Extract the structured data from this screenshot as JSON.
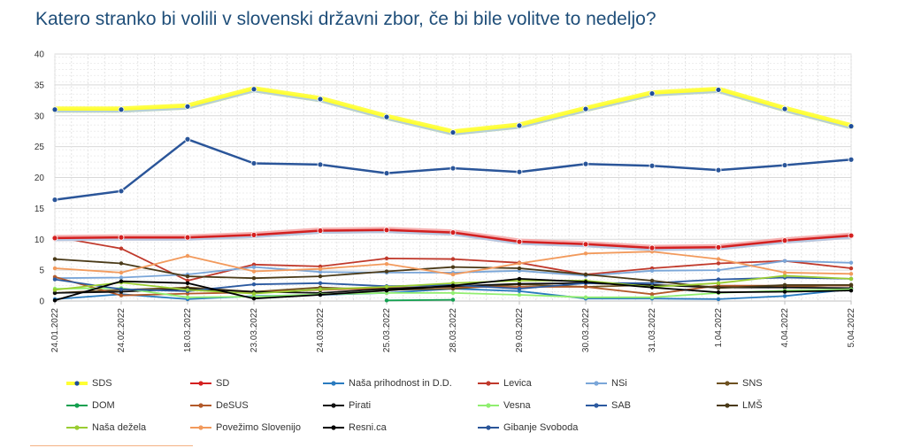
{
  "title": "Katero stranko bi volili v slovenski državni zbor, če bi bile volitve to nedeljo?",
  "colors": {
    "SDS": "#1f4e9a",
    "SDS_glow": "#ffff33",
    "SD": "#d42020",
    "Nasa_prihodnost": "#2a7bbf",
    "Levica": "#c0392b",
    "NSi": "#7aa6d8",
    "SNS": "#6e5120",
    "DOM": "#13a050",
    "DeSUS": "#b35a2a",
    "Pirati": "#111111",
    "Vesna": "#90ee70",
    "SAB": "#2c5aa0",
    "LMS": "#4a3a18",
    "Nasa_dezela": "#9acd32",
    "Povezimo": "#f29a5c",
    "Resnica": "#000000",
    "Gibanje": "#2a5599"
  },
  "chart_data": {
    "type": "line",
    "title": "Katero stranko bi volili v slovenski državni zbor, če bi bile volitve to nedeljo?",
    "xlabel": "",
    "ylabel": "",
    "ylim": [
      0,
      40
    ],
    "yticks": [
      "0",
      "5",
      "10",
      "15",
      "20",
      "25",
      "30",
      "35",
      "40"
    ],
    "grid": true,
    "legend_position": "bottom",
    "x": [
      "24.01.2022",
      "24.02.2022",
      "18.03.2022",
      "23.03.2022",
      "24.03.2022",
      "25.03.2022",
      "28.03.2022",
      "29.03.2022",
      "30.03.2022",
      "31.03.2022",
      "1.04.2022",
      "4.04.2022",
      "5.04.2022"
    ],
    "series": [
      {
        "name": "SDS",
        "color": "#1f4e9a",
        "glow": "#ffff33",
        "values": [
          31,
          31,
          31.5,
          34.3,
          32.7,
          29.8,
          27.3,
          28.4,
          31.1,
          33.6,
          34.2,
          31.1,
          28.3
        ]
      },
      {
        "name": "SD",
        "color": "#d42020",
        "glow": "#f4a9a9",
        "values": [
          10.2,
          10.3,
          10.3,
          10.7,
          11.4,
          11.5,
          11.1,
          9.6,
          9.2,
          8.6,
          8.7,
          9.8,
          10.6
        ]
      },
      {
        "name": "Naša prihodnost in D.D.",
        "color": "#2a7bbf",
        "values": [
          0.3,
          1.1,
          0.3,
          0.8,
          1.0,
          1.3,
          2.0,
          1.6,
          0.4,
          0.4,
          0.3,
          0.8,
          1.9
        ]
      },
      {
        "name": "Levica",
        "color": "#c0392b",
        "values": [
          10.4,
          8.5,
          3.3,
          5.9,
          5.6,
          6.9,
          6.8,
          6.2,
          4.3,
          5.3,
          6.1,
          6.5,
          5.3
        ]
      },
      {
        "name": "NSi",
        "color": "#7aa6d8",
        "values": [
          3.7,
          3.8,
          4.3,
          5.5,
          4.7,
          4.6,
          4.6,
          4.9,
          4.1,
          4.9,
          5.0,
          6.5,
          6.2
        ]
      },
      {
        "name": "SNS",
        "color": "#6e5120",
        "values": [
          1.3,
          1.8,
          2.2,
          1.5,
          2.2,
          1.8,
          2.0,
          2.7,
          2.3,
          2.6,
          2.3,
          2.3,
          2.6
        ]
      },
      {
        "name": "DOM",
        "color": "#13a050",
        "values": [
          null,
          null,
          null,
          null,
          null,
          0.1,
          0.2,
          null,
          null,
          null,
          null,
          null,
          null
        ]
      },
      {
        "name": "DeSUS",
        "color": "#b35a2a",
        "values": [
          3.9,
          0.9,
          1.2,
          1.4,
          1.8,
          2.1,
          2.3,
          2.3,
          2.3,
          1.1,
          2.5,
          2.5,
          2.5
        ]
      },
      {
        "name": "Pirati",
        "color": "#111111",
        "values": [
          1.3,
          1.5,
          2.0,
          1.5,
          1.3,
          2.0,
          2.4,
          2.8,
          2.9,
          2.6,
          2.2,
          2.2,
          2.1
        ]
      },
      {
        "name": "Vesna",
        "color": "#90ee70",
        "values": [
          2.0,
          2.1,
          0.6,
          0.7,
          1.1,
          1.3,
          1.3,
          1.0,
          0.6,
          0.6,
          1.3,
          1.7,
          1.9
        ]
      },
      {
        "name": "SAB",
        "color": "#2c5aa0",
        "values": [
          3.5,
          1.9,
          1.6,
          2.7,
          2.9,
          2.4,
          2.6,
          2.0,
          2.9,
          2.9,
          3.5,
          3.8,
          3.6
        ]
      },
      {
        "name": "LMŠ",
        "color": "#4a3a18",
        "values": [
          6.8,
          6.1,
          4.0,
          3.7,
          4.0,
          4.8,
          5.5,
          5.3,
          4.3,
          3.3,
          2.1,
          2.6,
          2.6
        ]
      },
      {
        "name": "Naša dežela",
        "color": "#9acd32",
        "values": [
          1.8,
          3.0,
          1.8,
          1.2,
          1.9,
          2.3,
          2.9,
          3.3,
          3.3,
          2.3,
          2.9,
          4.1,
          3.6
        ]
      },
      {
        "name": "Povežimo Slovenijo",
        "color": "#f29a5c",
        "values": [
          5.3,
          4.6,
          7.3,
          4.8,
          5.2,
          6.0,
          4.3,
          6.1,
          7.7,
          8.0,
          6.8,
          4.6,
          4.4
        ]
      },
      {
        "name": "Resni.ca",
        "color": "#000000",
        "values": [
          0.1,
          3.2,
          2.9,
          0.4,
          1.0,
          1.7,
          2.5,
          3.6,
          3.1,
          2.2,
          1.4,
          1.5,
          1.7
        ]
      },
      {
        "name": "Gibanje Svoboda",
        "color": "#2a5599",
        "values": [
          16.4,
          17.8,
          26.2,
          22.3,
          22.1,
          20.7,
          21.5,
          20.9,
          22.2,
          21.9,
          21.2,
          22.0,
          22.9
        ]
      }
    ]
  }
}
